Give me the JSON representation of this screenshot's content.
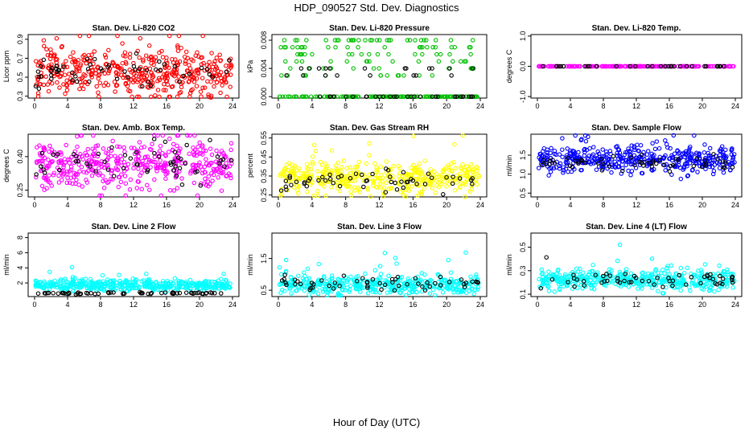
{
  "title": "HDP_090527  Std. Dev. Diagnostics",
  "xlabel": "Hour of Day (UTC)",
  "chart_data": [
    {
      "type": "scatter",
      "title": "Stan. Dev. Li-820 CO2",
      "ylabel": "Licor ppm",
      "xlim": [
        0,
        24
      ],
      "ylim": [
        0.28,
        0.95
      ],
      "yticks": [
        "0.3",
        "0.5",
        "0.7",
        "0.9"
      ],
      "ytick_values": [
        0.3,
        0.5,
        0.7,
        0.9
      ],
      "xticks": [
        0,
        4,
        8,
        12,
        16,
        20,
        24
      ],
      "series": [
        {
          "color": "#ff0000",
          "density": "dense",
          "center": 0.55,
          "spread": 0.12,
          "count": 440
        },
        {
          "color": "#000000",
          "density": "sparse",
          "center": 0.55,
          "spread": 0.08,
          "count": 55
        }
      ]
    },
    {
      "type": "scatter",
      "title": "Stan. Dev. Li-820 Pressure",
      "ylabel": "kPa",
      "xlim": [
        0,
        24
      ],
      "ylim": [
        -0.0002,
        0.0088
      ],
      "yticks": [
        "0.000",
        "0.004",
        "0.008"
      ],
      "ytick_values": [
        0,
        0.004,
        0.008
      ],
      "xticks": [
        0,
        4,
        8,
        12,
        16,
        20,
        24
      ],
      "series": [
        {
          "color": "#00c000",
          "levels": [
            0,
            0.003,
            0.004,
            0.005,
            0.006,
            0.007,
            0.008
          ],
          "count": 260
        },
        {
          "color": "#000000",
          "levels": [
            0,
            0.003,
            0.004
          ],
          "count": 50
        }
      ]
    },
    {
      "type": "scatter",
      "title": "Stan. Dev. Li-820 Temp.",
      "ylabel": "degrees C",
      "xlim": [
        0,
        24
      ],
      "ylim": [
        -1.05,
        1.05
      ],
      "yticks": [
        "-1.0",
        "0.0",
        "1.0"
      ],
      "ytick_values": [
        -1,
        0,
        1
      ],
      "xticks": [
        0,
        4,
        8,
        12,
        16,
        20,
        24
      ],
      "series": [
        {
          "color": "#ff00ff",
          "constant": 0,
          "count": 200
        },
        {
          "color": "#000000",
          "constant": 0,
          "count": 30
        }
      ]
    },
    {
      "type": "scatter",
      "title": "Stan. Dev. Amb. Box Temp.",
      "ylabel": "degrees C",
      "xlim": [
        0,
        24
      ],
      "ylim": [
        0.22,
        0.5
      ],
      "yticks": [
        "0.25",
        "0.40"
      ],
      "ytick_values": [
        0.25,
        0.4
      ],
      "xticks": [
        0,
        4,
        8,
        12,
        16,
        20,
        24
      ],
      "series": [
        {
          "color": "#ff00ff",
          "center": 0.36,
          "spread": 0.05,
          "count": 440
        },
        {
          "color": "#000000",
          "center": 0.37,
          "spread": 0.04,
          "count": 55
        }
      ]
    },
    {
      "type": "scatter",
      "title": "Stan. Dev. Gas Stream RH",
      "ylabel": "percent",
      "xlim": [
        0,
        24
      ],
      "ylim": [
        0.24,
        0.57
      ],
      "yticks": [
        "0.25",
        "0.35",
        "0.45",
        "0.55"
      ],
      "ytick_values": [
        0.25,
        0.35,
        0.45,
        0.55
      ],
      "xticks": [
        0,
        4,
        8,
        12,
        16,
        20,
        24
      ],
      "series": [
        {
          "color": "#ffff00",
          "center": 0.34,
          "spread": 0.04,
          "count": 440
        },
        {
          "color": "#000000",
          "center": 0.33,
          "spread": 0.03,
          "count": 55
        }
      ]
    },
    {
      "type": "scatter",
      "title": "Stan. Dev. Sample Flow",
      "ylabel": "ml/min",
      "xlim": [
        0,
        24
      ],
      "ylim": [
        0.4,
        2.05
      ],
      "yticks": [
        "0.5",
        "1.0",
        "1.5"
      ],
      "ytick_values": [
        0.5,
        1,
        1.5
      ],
      "xticks": [
        0,
        4,
        8,
        12,
        16,
        20,
        24
      ],
      "series": [
        {
          "color": "#0000ff",
          "center": 1.38,
          "spread": 0.17,
          "count": 440
        },
        {
          "color": "#000000",
          "center": 1.3,
          "spread": 0.1,
          "count": 55
        }
      ]
    },
    {
      "type": "scatter",
      "title": "Stan. Dev. Line 2 Flow",
      "ylabel": "ml/min",
      "xlim": [
        0,
        24
      ],
      "ylim": [
        0.2,
        8.6
      ],
      "yticks": [
        "2",
        "4",
        "6",
        "8"
      ],
      "ytick_values": [
        2,
        4,
        6,
        8
      ],
      "xticks": [
        0,
        4,
        8,
        12,
        16,
        20,
        24
      ],
      "series": [
        {
          "color": "#00ffff",
          "center": 1.7,
          "spread": 0.35,
          "count": 440
        },
        {
          "color": "#000000",
          "center": 0.65,
          "spread": 0.06,
          "count": 60
        }
      ]
    },
    {
      "type": "scatter",
      "title": "Stan. Dev. Line 3 Flow",
      "ylabel": "ml/min",
      "xlim": [
        0,
        24
      ],
      "ylim": [
        0.3,
        2.3
      ],
      "yticks": [
        "0.5",
        "1.5"
      ],
      "ytick_values": [
        0.5,
        1.5
      ],
      "xticks": [
        0,
        4,
        8,
        12,
        16,
        20,
        24
      ],
      "series": [
        {
          "color": "#00ffff",
          "center": 0.65,
          "spread": 0.15,
          "count": 440
        },
        {
          "color": "#000000",
          "center": 0.7,
          "spread": 0.12,
          "count": 55
        }
      ]
    },
    {
      "type": "scatter",
      "title": "Stan. Dev. Line 4 (LT) Flow",
      "ylabel": "ml/min",
      "xlim": [
        0,
        24
      ],
      "ylim": [
        0.08,
        0.62
      ],
      "yticks": [
        "0.1",
        "0.3",
        "0.5"
      ],
      "ytick_values": [
        0.1,
        0.3,
        0.5
      ],
      "xticks": [
        0,
        4,
        8,
        12,
        16,
        20,
        24
      ],
      "series": [
        {
          "color": "#00ffff",
          "center": 0.22,
          "spread": 0.04,
          "count": 440
        },
        {
          "color": "#000000",
          "center": 0.22,
          "spread": 0.03,
          "count": 55
        }
      ]
    }
  ]
}
